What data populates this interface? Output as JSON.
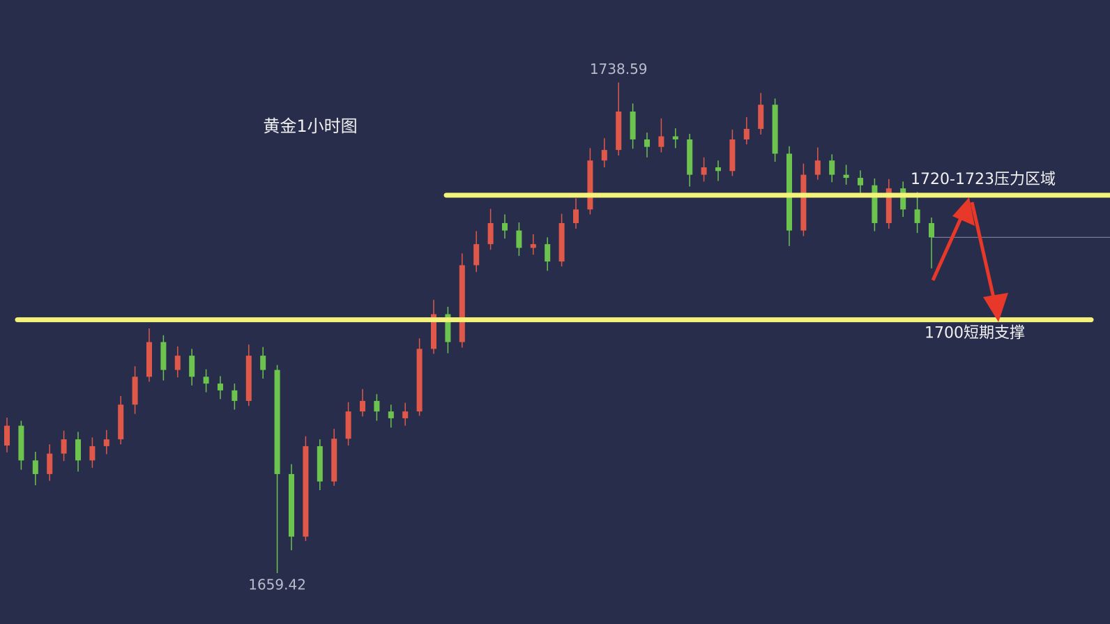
{
  "chart_data": {
    "type": "candlestick",
    "title": "黄金1小时图",
    "up_color": "#e0584a",
    "down_color": "#6cc44e",
    "level_color": "#f4f27a",
    "ylim": [
      1651.2,
      1751.9
    ],
    "open": [
      1680.0,
      1683.2,
      1677.6,
      1675.4,
      1678.7,
      1681.0,
      1677.6,
      1679.9,
      1681.0,
      1686.6,
      1691.1,
      1696.7,
      1692.2,
      1694.5,
      1691.1,
      1690.0,
      1688.9,
      1687.2,
      1694.5,
      1692.2,
      1675.4,
      1665.3,
      1679.9,
      1674.2,
      1681.1,
      1685.5,
      1687.2,
      1685.5,
      1684.4,
      1685.5,
      1695.6,
      1701.2,
      1696.7,
      1709.1,
      1712.5,
      1715.9,
      1714.7,
      1711.9,
      1712.5,
      1709.7,
      1715.9,
      1718.1,
      1726.0,
      1727.7,
      1733.9,
      1729.4,
      1728.2,
      1729.9,
      1729.4,
      1723.7,
      1724.9,
      1724.3,
      1729.4,
      1731.1,
      1735.0,
      1727.1,
      1714.7,
      1723.7,
      1726.0,
      1723.7,
      1723.2,
      1722.0,
      1715.9,
      1721.5,
      1718.1,
      1715.9
    ],
    "high": [
      1684.5,
      1684.0,
      1679.0,
      1680.2,
      1682.4,
      1682.2,
      1681.3,
      1682.5,
      1688.0,
      1692.8,
      1698.9,
      1697.8,
      1696.0,
      1695.6,
      1692.3,
      1691.2,
      1690.0,
      1696.3,
      1695.9,
      1693.0,
      1677.0,
      1681.5,
      1681.0,
      1682.7,
      1687.0,
      1689.1,
      1688.3,
      1686.6,
      1686.9,
      1697.3,
      1703.5,
      1702.4,
      1711.0,
      1714.6,
      1718.2,
      1717.3,
      1716.0,
      1714.1,
      1713.6,
      1717.4,
      1719.9,
      1728.0,
      1729.6,
      1738.59,
      1735.2,
      1730.5,
      1732.8,
      1731.2,
      1730.3,
      1726.5,
      1726.0,
      1731.0,
      1733.0,
      1736.9,
      1736.0,
      1728.3,
      1725.5,
      1728.1,
      1727.0,
      1725.3,
      1724.4,
      1723.1,
      1723.0,
      1722.6,
      1720.9,
      1716.8
    ],
    "low": [
      1678.9,
      1676.1,
      1673.6,
      1674.3,
      1677.5,
      1675.8,
      1676.4,
      1678.6,
      1680.2,
      1685.1,
      1690.3,
      1690.5,
      1691.0,
      1689.7,
      1688.6,
      1687.5,
      1685.8,
      1686.4,
      1690.8,
      1659.42,
      1663.1,
      1664.6,
      1672.8,
      1673.5,
      1680.0,
      1684.7,
      1684.0,
      1682.9,
      1683.2,
      1684.8,
      1694.8,
      1694.9,
      1695.8,
      1708.0,
      1711.6,
      1713.4,
      1710.6,
      1710.8,
      1708.2,
      1708.9,
      1715.0,
      1717.3,
      1724.9,
      1726.8,
      1727.9,
      1726.5,
      1727.3,
      1728.0,
      1721.8,
      1722.6,
      1722.7,
      1723.5,
      1728.6,
      1730.2,
      1725.8,
      1712.2,
      1713.8,
      1722.9,
      1722.5,
      1722.1,
      1720.8,
      1714.6,
      1715.0,
      1716.9,
      1714.3,
      1708.6
    ],
    "close": [
      1683.2,
      1677.6,
      1675.4,
      1678.7,
      1681.0,
      1677.6,
      1679.9,
      1681.0,
      1686.6,
      1691.1,
      1696.7,
      1692.2,
      1694.5,
      1691.1,
      1690.0,
      1688.9,
      1687.2,
      1694.5,
      1692.2,
      1675.4,
      1665.3,
      1679.9,
      1674.2,
      1681.1,
      1685.5,
      1687.2,
      1685.5,
      1684.4,
      1685.5,
      1695.6,
      1701.2,
      1696.7,
      1709.1,
      1712.5,
      1715.9,
      1714.7,
      1711.9,
      1712.5,
      1709.7,
      1715.9,
      1718.1,
      1726.0,
      1727.7,
      1733.9,
      1729.4,
      1728.2,
      1729.9,
      1729.4,
      1723.7,
      1724.9,
      1724.3,
      1729.4,
      1731.1,
      1735.0,
      1727.1,
      1714.7,
      1723.7,
      1726.0,
      1723.7,
      1723.2,
      1722.0,
      1715.9,
      1721.5,
      1718.1,
      1715.9,
      1713.6
    ],
    "levels": [
      {
        "value": 1720.4,
        "label": "1720-1723压力区域"
      },
      {
        "value": 1700.3,
        "label": "1700短期支撑"
      }
    ]
  }
}
